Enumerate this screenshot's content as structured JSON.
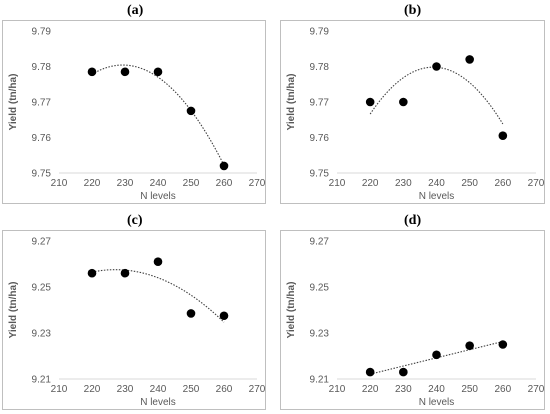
{
  "chart_data": [
    {
      "type": "scatter",
      "panel_label": "(a)",
      "xlabel": "N levels",
      "ylabel": "Yield (tn/ha)",
      "xlim": [
        210,
        270
      ],
      "ylim": [
        9.75,
        9.79
      ],
      "xticks": [
        "210",
        "220",
        "230",
        "240",
        "250",
        "260",
        "270"
      ],
      "yticks": [
        "9.75",
        "9.76",
        "9.77",
        "9.78",
        "9.79"
      ],
      "grid": false,
      "trendline": "polynomial",
      "points": [
        {
          "x": 220,
          "y": 9.7785
        },
        {
          "x": 230,
          "y": 9.7785
        },
        {
          "x": 240,
          "y": 9.7785
        },
        {
          "x": 250,
          "y": 9.7675
        },
        {
          "x": 260,
          "y": 9.752
        }
      ]
    },
    {
      "type": "scatter",
      "panel_label": "(b)",
      "xlabel": "N levels",
      "ylabel": "Yield (tn/ha)",
      "xlim": [
        210,
        270
      ],
      "ylim": [
        9.75,
        9.79
      ],
      "xticks": [
        "210",
        "220",
        "230",
        "240",
        "250",
        "260",
        "270"
      ],
      "yticks": [
        "9.75",
        "9.76",
        "9.77",
        "9.78",
        "9.79"
      ],
      "grid": false,
      "trendline": "polynomial",
      "points": [
        {
          "x": 220,
          "y": 9.77
        },
        {
          "x": 230,
          "y": 9.77
        },
        {
          "x": 240,
          "y": 9.78
        },
        {
          "x": 250,
          "y": 9.782
        },
        {
          "x": 260,
          "y": 9.7605
        }
      ]
    },
    {
      "type": "scatter",
      "panel_label": "(c)",
      "xlabel": "N levels",
      "ylabel": "Yield (tn/ha)",
      "xlim": [
        210,
        270
      ],
      "ylim": [
        9.21,
        9.27
      ],
      "xticks": [
        "210",
        "220",
        "230",
        "240",
        "250",
        "260",
        "270"
      ],
      "yticks": [
        "9.21",
        "9.23",
        "9.25",
        "9.27"
      ],
      "grid": false,
      "trendline": "polynomial",
      "points": [
        {
          "x": 220,
          "y": 9.256
        },
        {
          "x": 230,
          "y": 9.256
        },
        {
          "x": 240,
          "y": 9.261
        },
        {
          "x": 250,
          "y": 9.2385
        },
        {
          "x": 260,
          "y": 9.2375
        }
      ]
    },
    {
      "type": "scatter",
      "panel_label": "(d)",
      "xlabel": "N levels",
      "ylabel": "Yield (tn/ha)",
      "xlim": [
        210,
        270
      ],
      "ylim": [
        9.21,
        9.27
      ],
      "xticks": [
        "210",
        "220",
        "230",
        "240",
        "250",
        "260",
        "270"
      ],
      "yticks": [
        "9.21",
        "9.23",
        "9.25",
        "9.27"
      ],
      "grid": false,
      "trendline": "linear",
      "points": [
        {
          "x": 220,
          "y": 9.213
        },
        {
          "x": 230,
          "y": 9.213
        },
        {
          "x": 240,
          "y": 9.2205
        },
        {
          "x": 250,
          "y": 9.2245
        },
        {
          "x": 260,
          "y": 9.225
        }
      ]
    }
  ]
}
